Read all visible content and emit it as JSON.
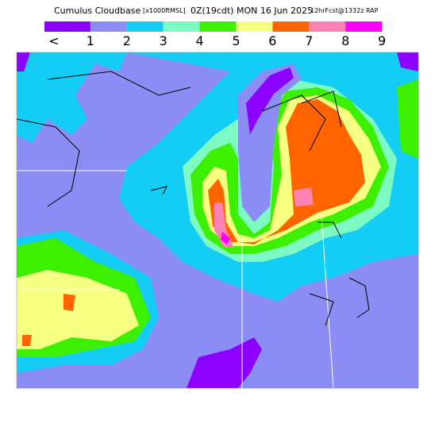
{
  "header": {
    "title": "Cumulus Cloudbase",
    "units": "[x1000ftMSL]",
    "time": "0Z(19cdt) MON 16 Jun 2025",
    "forecast": "12hrFcst@1332z RAP"
  },
  "legend": {
    "labels": [
      "<",
      "1",
      "2",
      "3",
      "4",
      "5",
      "6",
      "7",
      "8",
      "9"
    ],
    "colors": [
      "#8c00ff",
      "#8c8cf5",
      "#14cdf5",
      "#7dfac3",
      "#3cf000",
      "#f5ff82",
      "#ff6400",
      "#ff82b4",
      "#ff00ff"
    ]
  }
}
